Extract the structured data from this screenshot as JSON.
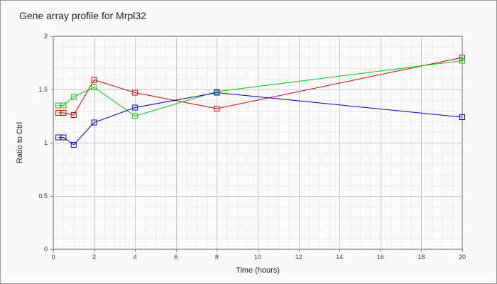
{
  "chart_data": {
    "type": "line",
    "title": "Gene array profile for Mrpl32",
    "xlabel": "Time (hours)",
    "ylabel": "Ratio to Ctrl",
    "xlim": [
      0,
      20
    ],
    "ylim": [
      0,
      2
    ],
    "x_ticks": [
      0,
      2,
      4,
      6,
      8,
      10,
      12,
      14,
      16,
      18,
      20
    ],
    "y_ticks": [
      0,
      0.5,
      1,
      1.5,
      2
    ],
    "y_tick_labels": [
      "0",
      "0.5",
      "1",
      "1.5",
      "2"
    ],
    "grid": true,
    "legend": "none",
    "background": "#fafafa",
    "marker": "square",
    "series": [
      {
        "color": "#cc0000",
        "x": [
          0.25,
          0.5,
          1,
          2,
          4,
          8,
          20
        ],
        "y": [
          1.28,
          1.28,
          1.26,
          1.59,
          1.47,
          1.32,
          1.8
        ]
      },
      {
        "color": "#00cc00",
        "x": [
          0.25,
          0.5,
          1,
          2,
          4,
          8,
          20
        ],
        "y": [
          1.35,
          1.35,
          1.43,
          1.52,
          1.25,
          1.48,
          1.77
        ]
      },
      {
        "color": "#0000bb",
        "x": [
          0.25,
          0.5,
          1,
          2,
          4,
          8,
          20
        ],
        "y": [
          1.05,
          1.05,
          0.98,
          1.19,
          1.33,
          1.47,
          1.24
        ]
      }
    ]
  }
}
